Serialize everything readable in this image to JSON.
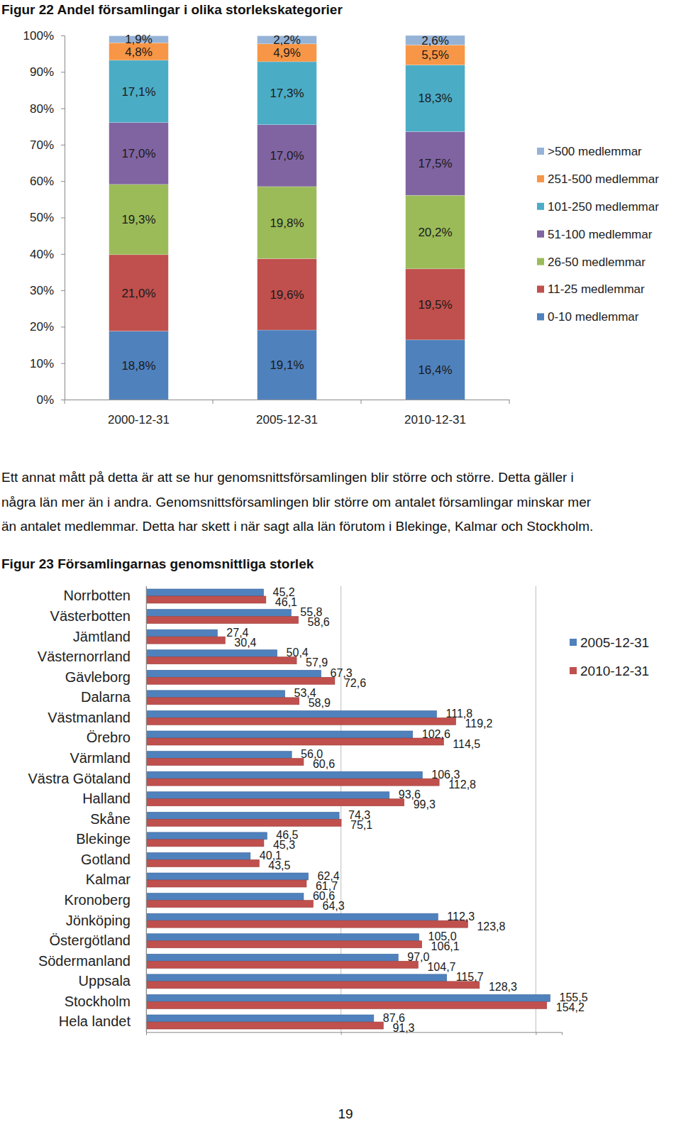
{
  "chart_data": [
    {
      "type": "bar",
      "title": "Figur 22 Andel församlingar i olika storlekskategorier",
      "categories": [
        "2000-12-31",
        "2005-12-31",
        "2010-12-31"
      ],
      "stacked": true,
      "data_labels": true,
      "legend": "right",
      "ylim": [
        0,
        100
      ],
      "yticks": [
        {
          "value": 0,
          "label": "0%"
        },
        {
          "value": 10,
          "label": "10%"
        },
        {
          "value": 20,
          "label": "20%"
        },
        {
          "value": 30,
          "label": "30%"
        },
        {
          "value": 40,
          "label": "40%"
        },
        {
          "value": 50,
          "label": "50%"
        },
        {
          "value": 60,
          "label": "60%"
        },
        {
          "value": 70,
          "label": "70%"
        },
        {
          "value": 80,
          "label": "80%"
        },
        {
          "value": 90,
          "label": "90%"
        },
        {
          "value": 100,
          "label": "100%"
        }
      ],
      "series": [
        {
          "name": "0-10 medlemmar",
          "color": "#4f81bd",
          "values": [
            18.8,
            19.1,
            16.4
          ],
          "value_labels": [
            "18,8%",
            "19,1%",
            "16,4%"
          ]
        },
        {
          "name": "11-25 medlemmar",
          "color": "#c0504d",
          "values": [
            21.0,
            19.6,
            19.5
          ],
          "value_labels": [
            "21,0%",
            "19,6%",
            "19,5%"
          ]
        },
        {
          "name": "26-50 medlemmar",
          "color": "#9bbb59",
          "values": [
            19.3,
            19.8,
            20.2
          ],
          "value_labels": [
            "19,3%",
            "19,8%",
            "20,2%"
          ]
        },
        {
          "name": "51-100 medlemmar",
          "color": "#8064a2",
          "values": [
            17.0,
            17.0,
            17.5
          ],
          "value_labels": [
            "17,0%",
            "17,0%",
            "17,5%"
          ]
        },
        {
          "name": "101-250 medlemmar",
          "color": "#4bacc6",
          "values": [
            17.1,
            17.3,
            18.3
          ],
          "value_labels": [
            "17,1%",
            "17,3%",
            "18,3%"
          ]
        },
        {
          "name": "251-500 medlemmar",
          "color": "#f79646",
          "values": [
            4.8,
            4.9,
            5.5
          ],
          "value_labels": [
            "4,8%",
            "4,9%",
            "5,5%"
          ]
        },
        {
          "name": ">500 medlemmar",
          "color": "#95b3d7",
          "values": [
            1.9,
            2.2,
            2.6
          ],
          "value_labels": [
            "1,9%",
            "2,2%",
            "2,6%"
          ]
        }
      ]
    },
    {
      "type": "bar",
      "title": "Figur 23 Församlingarnas genomsnittliga storlek",
      "orientation": "horizontal",
      "data_labels": true,
      "legend": "right",
      "grid": true,
      "tick_labels": "y",
      "categories": [
        "Norrbotten",
        "Västerbotten",
        "Jämtland",
        "Västernorrland",
        "Gävleborg",
        "Dalarna",
        "Västmanland",
        "Örebro",
        "Värmland",
        "Västra Götaland",
        "Halland",
        "Skåne",
        "Blekinge",
        "Gotland",
        "Kalmar",
        "Kronoberg",
        "Jönköping",
        "Östergötland",
        "Södermanland",
        "Uppsala",
        "Stockholm",
        "Hela landet"
      ],
      "xlim": [
        0,
        160
      ],
      "xticks": [
        0,
        75,
        150
      ],
      "series": [
        {
          "name": "2005-12-31",
          "color": "#4f81bd",
          "values": [
            45.2,
            55.8,
            27.4,
            50.4,
            67.3,
            53.4,
            111.8,
            102.6,
            56.0,
            106.3,
            93.6,
            74.3,
            46.5,
            40.1,
            62.4,
            60.6,
            112.3,
            105.0,
            97.0,
            115.7,
            155.5,
            87.6
          ],
          "value_labels": [
            "45,2",
            "55,8",
            "27,4",
            "50,4",
            "67,3",
            "53,4",
            "111,8",
            "102,6",
            "56,0",
            "106,3",
            "93,6",
            "74,3",
            "46,5",
            "40,1",
            "62,4",
            "60,6",
            "112,3",
            "105,0",
            "97,0",
            "115,7",
            "155,5",
            "87,6"
          ]
        },
        {
          "name": "2010-12-31",
          "color": "#c0504d",
          "values": [
            46.1,
            58.6,
            30.4,
            57.9,
            72.6,
            58.9,
            119.2,
            114.5,
            60.6,
            112.8,
            99.3,
            75.1,
            45.3,
            43.5,
            61.7,
            64.3,
            123.8,
            106.1,
            104.7,
            128.3,
            154.2,
            91.3
          ],
          "value_labels": [
            "46,1",
            "58,6",
            "30,4",
            "57,9",
            "72,6",
            "58,9",
            "119,2",
            "114,5",
            "60,6",
            "112,8",
            "99,3",
            "75,1",
            "45,3",
            "43,5",
            "61,7",
            "64,3",
            "123,8",
            "106,1",
            "104,7",
            "128,3",
            "154,2",
            "91,3"
          ]
        }
      ]
    }
  ],
  "paragraph": [
    "Ett annat mått på detta är att se hur genomsnittsförsamlingen blir större och större. Detta gäller i",
    "några län mer än i andra. Genomsnittsförsamlingen blir större om antalet församlingar minskar mer",
    "än antalet medlemmar. Detta har skett i när sagt alla län förutom i Blekinge, Kalmar och Stockholm."
  ],
  "page_number": "19"
}
